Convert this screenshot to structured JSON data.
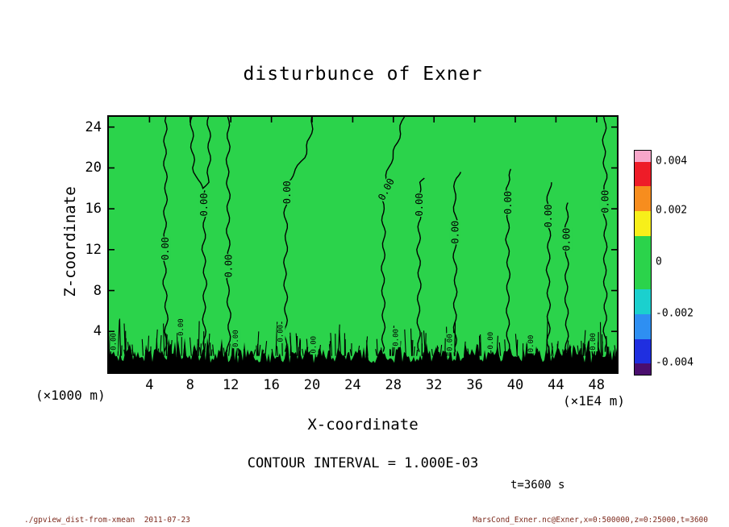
{
  "annotations": {
    "contour_interval": "CONTOUR INTERVAL = 1.000E-03",
    "time": "t=3600 s"
  },
  "footer": {
    "left": "./gpview_dist-from-xmean  2011-07-23",
    "right": "MarsCond_Exner.nc@Exner,x=0:500000,z=0:25000,t=3600"
  },
  "chart_data": {
    "type": "contour",
    "title": "disturbunce of Exner",
    "xlabel": "X-coordinate",
    "ylabel": "Z-coordinate",
    "x_unit": "(×1E4 m)",
    "y_unit": "(×1000 m)",
    "x_range": [
      0,
      50
    ],
    "y_range": [
      0,
      25
    ],
    "x_ticks": [
      4,
      8,
      12,
      16,
      20,
      24,
      28,
      32,
      36,
      40,
      44,
      48
    ],
    "y_ticks": [
      4,
      8,
      12,
      16,
      20,
      24
    ],
    "contour_interval": 0.001,
    "contour_label": "0.00",
    "fill_value_band": 0,
    "fill_color": "#2BD34B",
    "line_color": "#000000",
    "contour_lines": [
      {
        "points": [
          [
            2.0,
            5.55
          ],
          [
            6,
            5.7
          ],
          [
            9,
            5.45
          ],
          [
            12,
            5.6
          ],
          [
            15,
            5.5
          ],
          [
            18,
            5.65
          ],
          [
            21,
            5.5
          ],
          [
            25,
            5.6
          ]
        ],
        "labels": [
          [
            12.1,
            5.57,
            -90
          ]
        ]
      },
      {
        "points": [
          [
            25,
            8.15
          ],
          [
            22,
            8.2
          ],
          [
            20,
            8.35
          ],
          [
            18.8,
            8.7
          ],
          [
            18.0,
            9.25
          ],
          [
            18.6,
            9.7
          ],
          [
            20,
            9.85
          ],
          [
            22,
            9.9
          ],
          [
            25,
            9.8
          ]
        ],
        "labels": []
      },
      {
        "points": [
          [
            17.8,
            9.3
          ],
          [
            15,
            9.45
          ],
          [
            12,
            9.3
          ],
          [
            9,
            9.5
          ],
          [
            6,
            9.35
          ],
          [
            2.0,
            9.45
          ]
        ],
        "labels": [
          [
            16.4,
            9.37,
            -90
          ]
        ]
      },
      {
        "points": [
          [
            2.0,
            11.75
          ],
          [
            5,
            11.9
          ],
          [
            8,
            11.7
          ],
          [
            11,
            11.85
          ],
          [
            14,
            11.7
          ],
          [
            17,
            11.8
          ],
          [
            20,
            11.65
          ],
          [
            22.5,
            11.8
          ],
          [
            25,
            11.7
          ]
        ],
        "labels": [
          [
            10.4,
            11.78,
            -90
          ]
        ]
      },
      {
        "points": [
          [
            25,
            20.1
          ],
          [
            23,
            19.8
          ],
          [
            21,
            19.2
          ],
          [
            19.5,
            18.2
          ],
          [
            18.6,
            17.6
          ],
          [
            16,
            17.35
          ],
          [
            13,
            17.5
          ],
          [
            10,
            17.3
          ],
          [
            7,
            17.45
          ],
          [
            2.0,
            17.35
          ]
        ],
        "labels": [
          [
            17.6,
            17.55,
            -90
          ]
        ]
      },
      {
        "points": [
          [
            25,
            29.0
          ],
          [
            22.5,
            28.4
          ],
          [
            20.5,
            27.7
          ],
          [
            18.5,
            27.15
          ],
          [
            16,
            26.95
          ],
          [
            13,
            27.1
          ],
          [
            10,
            26.95
          ],
          [
            6,
            27.05
          ],
          [
            2.0,
            27.0
          ]
        ],
        "labels": [
          [
            17.9,
            27.3,
            -62
          ]
        ]
      },
      {
        "points": [
          [
            19.0,
            31.2
          ],
          [
            18.6,
            30.7
          ],
          [
            17.5,
            30.5
          ],
          [
            15,
            30.6
          ],
          [
            12,
            30.45
          ],
          [
            9,
            30.6
          ],
          [
            6,
            30.45
          ],
          [
            2.0,
            30.55
          ]
        ],
        "labels": [
          [
            16.4,
            30.55,
            -90
          ]
        ]
      },
      {
        "points": [
          [
            19.6,
            34.5
          ],
          [
            19.0,
            34.15
          ],
          [
            17,
            34.0
          ],
          [
            14.5,
            34.15
          ],
          [
            12,
            34.0
          ],
          [
            9,
            34.15
          ],
          [
            6,
            34.05
          ],
          [
            2.0,
            34.1
          ]
        ],
        "labels": [
          [
            13.7,
            34.07,
            -90
          ]
        ]
      },
      {
        "points": [
          [
            19.9,
            39.7
          ],
          [
            19.3,
            39.35
          ],
          [
            18,
            39.2
          ],
          [
            16,
            39.35
          ],
          [
            13,
            39.2
          ],
          [
            10,
            39.35
          ],
          [
            7,
            39.25
          ],
          [
            2.0,
            39.3
          ]
        ],
        "labels": [
          [
            16.6,
            39.3,
            -90
          ]
        ]
      },
      {
        "points": [
          [
            18.6,
            43.5
          ],
          [
            18.0,
            43.3
          ],
          [
            16,
            43.2
          ],
          [
            13,
            43.35
          ],
          [
            10,
            43.2
          ],
          [
            7,
            43.3
          ],
          [
            2.0,
            43.25
          ]
        ],
        "labels": [
          [
            15.3,
            43.27,
            -90
          ]
        ]
      },
      {
        "points": [
          [
            16.6,
            45.3
          ],
          [
            16.0,
            45.1
          ],
          [
            14,
            45.0
          ],
          [
            11,
            45.1
          ],
          [
            8,
            45.0
          ],
          [
            5,
            45.1
          ],
          [
            2.0,
            45.05
          ]
        ],
        "labels": [
          [
            13.0,
            45.05,
            -90
          ]
        ]
      },
      {
        "points": [
          [
            25,
            48.85
          ],
          [
            22,
            48.7
          ],
          [
            19,
            48.9
          ],
          [
            16,
            48.75
          ],
          [
            13,
            48.9
          ],
          [
            10,
            48.8
          ],
          [
            7,
            48.9
          ],
          [
            4,
            48.8
          ],
          [
            2.0,
            48.85
          ]
        ],
        "labels": [
          [
            16.7,
            48.83,
            -90
          ]
        ]
      }
    ],
    "bottom_turbulent_layer": {
      "solid_below_z": 2.2,
      "jagged_top_z": 3.5,
      "spike_top_z": 5.5
    },
    "bottom_labels": [
      [
        3.0,
        0.5
      ],
      [
        4.4,
        7.15
      ],
      [
        3.3,
        12.55
      ],
      [
        3.8,
        16.95
      ],
      [
        2.7,
        20.2
      ],
      [
        3.4,
        28.3
      ],
      [
        2.9,
        33.6
      ],
      [
        3.1,
        37.6
      ],
      [
        2.8,
        41.6
      ],
      [
        3.0,
        47.7
      ]
    ],
    "colorbar": {
      "bands": [
        {
          "color": "#F7A6C9",
          "frac": 0.05
        },
        {
          "color": "#EE1C28",
          "frac": 0.11
        },
        {
          "color": "#F78D1E",
          "frac": 0.11
        },
        {
          "color": "#F7EF1A",
          "frac": 0.11
        },
        {
          "color": "#2BD34B",
          "frac": 0.24
        },
        {
          "color": "#1BD0CE",
          "frac": 0.11
        },
        {
          "color": "#2E8FF2",
          "frac": 0.11
        },
        {
          "color": "#1F2FE0",
          "frac": 0.11
        },
        {
          "color": "#4A0E6E",
          "frac": 0.05
        }
      ],
      "ticks": [
        {
          "label": "0.004",
          "pos": 0.05
        },
        {
          "label": "0.002",
          "pos": 0.27
        },
        {
          "label": "0",
          "pos": 0.5
        },
        {
          "label": "-0.002",
          "pos": 0.73
        },
        {
          "label": "-0.004",
          "pos": 0.95
        }
      ]
    }
  }
}
